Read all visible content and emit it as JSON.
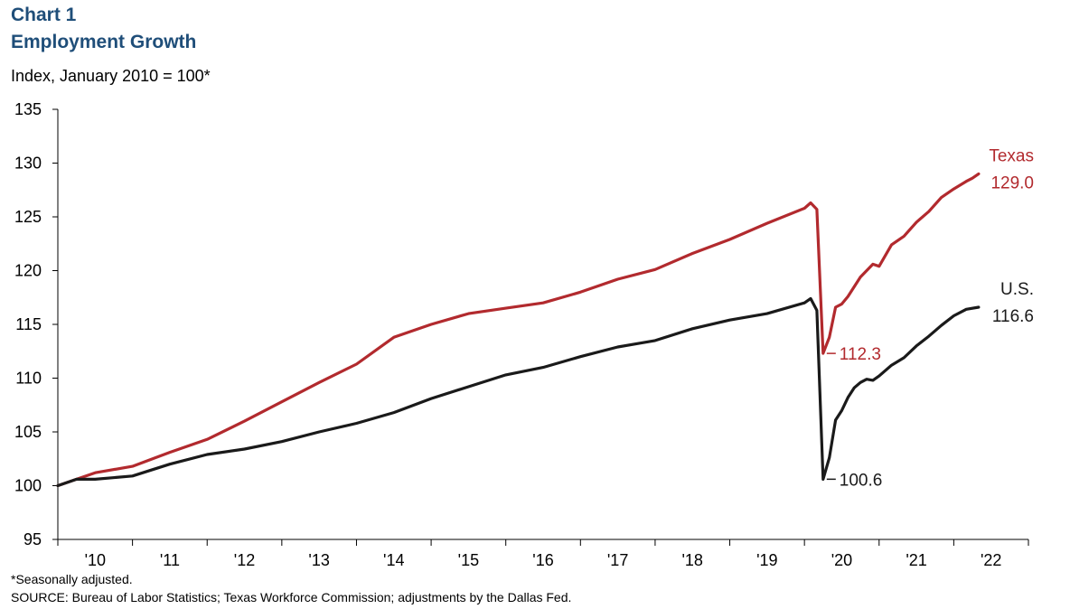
{
  "header": {
    "chart_label": "Chart 1",
    "title": "Employment  Growth",
    "subtitle": "Index, January 2010 = 100*"
  },
  "footer": {
    "footnote": "*Seasonally adjusted.",
    "source": "SOURCE:  Bureau of Labor Statistics; Texas  Workforce Commission;  adjustments  by the Dallas Fed."
  },
  "chart_data": {
    "type": "line",
    "ylabel": "Index, January 2010 = 100*",
    "ylim": [
      95,
      135
    ],
    "yticks": [
      95,
      100,
      105,
      110,
      115,
      120,
      125,
      130,
      135
    ],
    "xlim": [
      "2010-01",
      "2022-12"
    ],
    "xtick_labels": [
      "'10",
      "'11",
      "'12",
      "'13",
      "'14",
      "'15",
      "'16",
      "'17",
      "'18",
      "'19",
      "'20",
      "'21",
      "'22"
    ],
    "grid": false,
    "legend": "none",
    "series": [
      {
        "name": "Texas",
        "color": "#b22a2e",
        "label_value": "129.0",
        "x": [
          "2010-01",
          "2010-07",
          "2011-01",
          "2011-07",
          "2012-01",
          "2012-07",
          "2013-01",
          "2013-07",
          "2014-01",
          "2014-07",
          "2015-01",
          "2015-07",
          "2016-01",
          "2016-07",
          "2017-01",
          "2017-07",
          "2018-01",
          "2018-07",
          "2019-01",
          "2019-07",
          "2020-01",
          "2020-02",
          "2020-03",
          "2020-04",
          "2020-05",
          "2020-06",
          "2020-07",
          "2020-08",
          "2020-10",
          "2020-12",
          "2021-01",
          "2021-03",
          "2021-05",
          "2021-07",
          "2021-09",
          "2021-11",
          "2022-01",
          "2022-03",
          "2022-04",
          "2022-05"
        ],
        "values": [
          100.0,
          101.2,
          101.8,
          103.1,
          104.3,
          106.0,
          107.8,
          109.6,
          111.3,
          113.8,
          115.0,
          116.0,
          116.5,
          117.0,
          118.0,
          119.2,
          120.1,
          121.6,
          122.9,
          124.4,
          125.8,
          126.3,
          125.7,
          112.3,
          113.8,
          116.6,
          116.9,
          117.6,
          119.4,
          120.6,
          120.4,
          122.4,
          123.2,
          124.5,
          125.5,
          126.8,
          127.6,
          128.3,
          128.6,
          129.0
        ]
      },
      {
        "name": "U.S.",
        "color": "#1a1a1a",
        "label_value": "116.6",
        "x": [
          "2010-01",
          "2010-04",
          "2010-07",
          "2011-01",
          "2011-07",
          "2012-01",
          "2012-07",
          "2013-01",
          "2013-07",
          "2014-01",
          "2014-07",
          "2015-01",
          "2015-07",
          "2016-01",
          "2016-07",
          "2017-01",
          "2017-07",
          "2018-01",
          "2018-07",
          "2019-01",
          "2019-07",
          "2020-01",
          "2020-02",
          "2020-03",
          "2020-04",
          "2020-05",
          "2020-06",
          "2020-07",
          "2020-08",
          "2020-09",
          "2020-10",
          "2020-11",
          "2020-12",
          "2021-01",
          "2021-03",
          "2021-05",
          "2021-07",
          "2021-09",
          "2021-11",
          "2022-01",
          "2022-03",
          "2022-05"
        ],
        "values": [
          100.0,
          100.6,
          100.6,
          100.9,
          102.0,
          102.9,
          103.4,
          104.1,
          105.0,
          105.8,
          106.8,
          108.1,
          109.2,
          110.3,
          111.0,
          112.0,
          112.9,
          113.5,
          114.6,
          115.4,
          116.0,
          117.0,
          117.4,
          116.3,
          100.6,
          102.6,
          106.1,
          107.0,
          108.2,
          109.1,
          109.6,
          109.9,
          109.8,
          110.2,
          111.2,
          111.9,
          113.0,
          113.9,
          114.9,
          115.8,
          116.4,
          116.6
        ]
      }
    ],
    "annotations": [
      {
        "series": "Texas",
        "x": "2020-04",
        "text": "112.3"
      },
      {
        "series": "U.S.",
        "x": "2020-04",
        "text": "100.6"
      }
    ]
  }
}
